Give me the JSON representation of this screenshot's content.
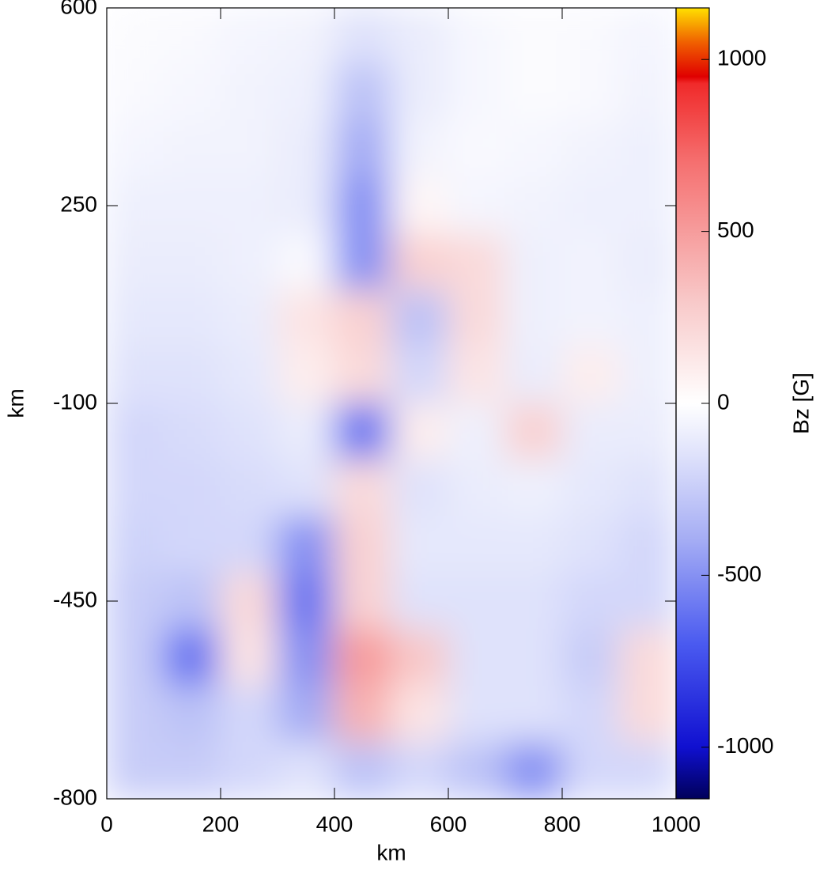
{
  "chart_data": {
    "type": "heatmap",
    "xlabel": "km",
    "ylabel": "km",
    "colorbar_label": "Bz [G]",
    "xlim": [
      0,
      1000
    ],
    "ylim": [
      -800,
      600
    ],
    "xticks": [
      0,
      200,
      400,
      600,
      800,
      1000
    ],
    "yticks": [
      600,
      250,
      -100,
      -450,
      -800
    ],
    "clim": [
      -1150,
      1150
    ],
    "cticks": [
      1000,
      500,
      0,
      -500,
      -1000
    ],
    "colorscale": [
      {
        "value": -1150,
        "color": "#00005a"
      },
      {
        "value": -1000,
        "color": "#1010d0"
      },
      {
        "value": -700,
        "color": "#4a5af0"
      },
      {
        "value": -400,
        "color": "#a4acf4"
      },
      {
        "value": -150,
        "color": "#dfe2fb"
      },
      {
        "value": 0,
        "color": "#ffffff"
      },
      {
        "value": 300,
        "color": "#f8c8c8"
      },
      {
        "value": 700,
        "color": "#f57070"
      },
      {
        "value": 930,
        "color": "#f02a2a"
      },
      {
        "value": 950,
        "color": "#e00000"
      },
      {
        "value": 1050,
        "color": "#f06000"
      },
      {
        "value": 1150,
        "color": "#ffe000"
      }
    ],
    "x": [
      50,
      150,
      250,
      350,
      450,
      550,
      650,
      750,
      850,
      950
    ],
    "y": [
      550,
      450,
      350,
      250,
      150,
      50,
      -50,
      -150,
      -250,
      -350,
      -450,
      -550,
      -650,
      -750
    ],
    "z": [
      [
        -20,
        -30,
        -50,
        -60,
        -150,
        -100,
        -40,
        -20,
        -30,
        -50
      ],
      [
        -30,
        -40,
        -60,
        -80,
        -300,
        -100,
        -40,
        -20,
        -30,
        -60
      ],
      [
        -50,
        -60,
        -60,
        -100,
        -400,
        -60,
        -30,
        -40,
        -60,
        -80
      ],
      [
        -80,
        -80,
        -80,
        -100,
        -500,
        50,
        -50,
        -60,
        -80,
        -80
      ],
      [
        -100,
        -100,
        -80,
        -30,
        -500,
        250,
        200,
        -80,
        -60,
        -100
      ],
      [
        -120,
        -120,
        -100,
        150,
        250,
        -300,
        200,
        -80,
        -60,
        -80
      ],
      [
        -150,
        -150,
        -120,
        100,
        200,
        -200,
        150,
        -100,
        100,
        -80
      ],
      [
        -200,
        -180,
        -150,
        -100,
        -600,
        100,
        -80,
        250,
        -100,
        -100
      ],
      [
        -200,
        -200,
        -180,
        -150,
        200,
        -150,
        -100,
        -80,
        -120,
        -150
      ],
      [
        -220,
        -200,
        -200,
        -500,
        250,
        -120,
        -120,
        -120,
        -150,
        -200
      ],
      [
        -250,
        -300,
        200,
        -600,
        250,
        -150,
        -150,
        -150,
        -200,
        -200
      ],
      [
        -250,
        -600,
        150,
        -500,
        500,
        300,
        -150,
        -150,
        -250,
        200
      ],
      [
        -250,
        -300,
        -200,
        -400,
        400,
        150,
        -150,
        -150,
        -200,
        200
      ],
      [
        -250,
        -250,
        -200,
        -150,
        -300,
        -200,
        -300,
        -500,
        -200,
        -200
      ]
    ]
  }
}
